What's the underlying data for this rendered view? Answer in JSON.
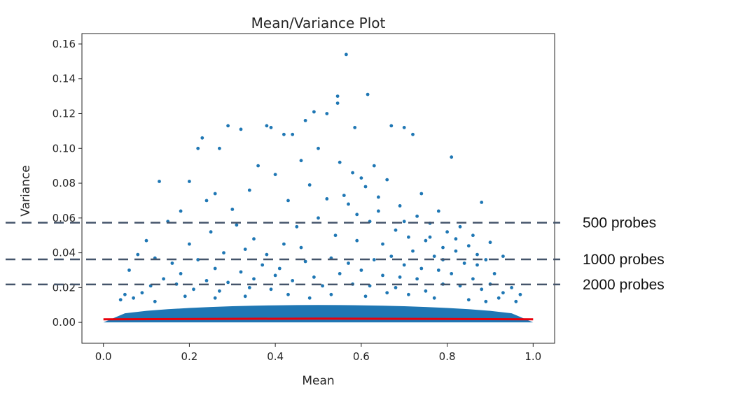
{
  "chart_data": {
    "type": "scatter",
    "title": "Mean/Variance Plot",
    "xlabel": "Mean",
    "ylabel": "Variance",
    "xlim": [
      -0.05,
      1.05
    ],
    "ylim": [
      -0.012,
      0.166
    ],
    "xticks": [
      0.0,
      0.2,
      0.4,
      0.6,
      0.8,
      1.0
    ],
    "xtick_labels": [
      "0.0",
      "0.2",
      "0.4",
      "0.6",
      "0.8",
      "1.0"
    ],
    "yticks": [
      0.0,
      0.02,
      0.04,
      0.06,
      0.08,
      0.1,
      0.12,
      0.14,
      0.16
    ],
    "ytick_labels": [
      "0.00",
      "0.02",
      "0.04",
      "0.06",
      "0.08",
      "0.10",
      "0.12",
      "0.14",
      "0.16"
    ],
    "grid": false,
    "point_color": "#1f77b4",
    "dense_band": {
      "x_range": [
        0.0,
        1.0
      ],
      "y_range": [
        0.0,
        0.01
      ]
    },
    "points": [
      [
        0.13,
        0.081
      ],
      [
        0.2,
        0.081
      ],
      [
        0.22,
        0.1
      ],
      [
        0.23,
        0.106
      ],
      [
        0.27,
        0.1
      ],
      [
        0.29,
        0.113
      ],
      [
        0.32,
        0.111
      ],
      [
        0.38,
        0.113
      ],
      [
        0.39,
        0.112
      ],
      [
        0.42,
        0.108
      ],
      [
        0.44,
        0.108
      ],
      [
        0.47,
        0.116
      ],
      [
        0.49,
        0.121
      ],
      [
        0.52,
        0.12
      ],
      [
        0.545,
        0.13
      ],
      [
        0.545,
        0.126
      ],
      [
        0.565,
        0.154
      ],
      [
        0.585,
        0.112
      ],
      [
        0.615,
        0.131
      ],
      [
        0.67,
        0.113
      ],
      [
        0.7,
        0.112
      ],
      [
        0.72,
        0.108
      ],
      [
        0.81,
        0.095
      ],
      [
        0.88,
        0.069
      ],
      [
        0.1,
        0.047
      ],
      [
        0.15,
        0.058
      ],
      [
        0.18,
        0.064
      ],
      [
        0.24,
        0.07
      ],
      [
        0.26,
        0.074
      ],
      [
        0.34,
        0.076
      ],
      [
        0.36,
        0.09
      ],
      [
        0.4,
        0.085
      ],
      [
        0.46,
        0.093
      ],
      [
        0.5,
        0.1
      ],
      [
        0.55,
        0.092
      ],
      [
        0.58,
        0.086
      ],
      [
        0.6,
        0.083
      ],
      [
        0.63,
        0.09
      ],
      [
        0.66,
        0.082
      ],
      [
        0.74,
        0.074
      ],
      [
        0.78,
        0.064
      ],
      [
        0.83,
        0.055
      ],
      [
        0.86,
        0.05
      ],
      [
        0.9,
        0.046
      ],
      [
        0.93,
        0.038
      ],
      [
        0.95,
        0.02
      ],
      [
        0.06,
        0.03
      ],
      [
        0.08,
        0.039
      ],
      [
        0.05,
        0.016
      ],
      [
        0.97,
        0.016
      ],
      [
        0.3,
        0.065
      ],
      [
        0.31,
        0.056
      ],
      [
        0.43,
        0.07
      ],
      [
        0.48,
        0.079
      ],
      [
        0.52,
        0.071
      ],
      [
        0.57,
        0.068
      ],
      [
        0.61,
        0.078
      ],
      [
        0.64,
        0.064
      ],
      [
        0.69,
        0.067
      ],
      [
        0.73,
        0.061
      ],
      [
        0.76,
        0.057
      ],
      [
        0.8,
        0.052
      ],
      [
        0.85,
        0.044
      ],
      [
        0.89,
        0.036
      ],
      [
        0.2,
        0.045
      ],
      [
        0.25,
        0.052
      ],
      [
        0.35,
        0.048
      ],
      [
        0.45,
        0.055
      ],
      [
        0.5,
        0.06
      ],
      [
        0.62,
        0.058
      ],
      [
        0.68,
        0.053
      ],
      [
        0.71,
        0.049
      ],
      [
        0.75,
        0.047
      ],
      [
        0.79,
        0.043
      ],
      [
        0.82,
        0.041
      ],
      [
        0.87,
        0.033
      ],
      [
        0.91,
        0.028
      ],
      [
        0.12,
        0.037
      ],
      [
        0.16,
        0.034
      ],
      [
        0.22,
        0.036
      ],
      [
        0.28,
        0.04
      ],
      [
        0.33,
        0.042
      ],
      [
        0.38,
        0.039
      ],
      [
        0.42,
        0.045
      ],
      [
        0.46,
        0.043
      ],
      [
        0.54,
        0.05
      ],
      [
        0.59,
        0.047
      ],
      [
        0.65,
        0.045
      ],
      [
        0.72,
        0.041
      ],
      [
        0.77,
        0.038
      ],
      [
        0.84,
        0.034
      ],
      [
        0.14,
        0.025
      ],
      [
        0.18,
        0.028
      ],
      [
        0.26,
        0.031
      ],
      [
        0.32,
        0.029
      ],
      [
        0.37,
        0.033
      ],
      [
        0.41,
        0.031
      ],
      [
        0.47,
        0.035
      ],
      [
        0.53,
        0.037
      ],
      [
        0.57,
        0.034
      ],
      [
        0.63,
        0.036
      ],
      [
        0.67,
        0.038
      ],
      [
        0.7,
        0.033
      ],
      [
        0.74,
        0.031
      ],
      [
        0.78,
        0.03
      ],
      [
        0.81,
        0.028
      ],
      [
        0.86,
        0.025
      ],
      [
        0.9,
        0.022
      ],
      [
        0.11,
        0.021
      ],
      [
        0.17,
        0.022
      ],
      [
        0.24,
        0.024
      ],
      [
        0.29,
        0.023
      ],
      [
        0.35,
        0.025
      ],
      [
        0.4,
        0.027
      ],
      [
        0.44,
        0.024
      ],
      [
        0.49,
        0.026
      ],
      [
        0.55,
        0.028
      ],
      [
        0.6,
        0.03
      ],
      [
        0.65,
        0.027
      ],
      [
        0.69,
        0.026
      ],
      [
        0.73,
        0.025
      ],
      [
        0.79,
        0.022
      ],
      [
        0.83,
        0.021
      ],
      [
        0.88,
        0.019
      ],
      [
        0.93,
        0.017
      ],
      [
        0.09,
        0.017
      ],
      [
        0.21,
        0.019
      ],
      [
        0.27,
        0.018
      ],
      [
        0.34,
        0.02
      ],
      [
        0.39,
        0.019
      ],
      [
        0.51,
        0.021
      ],
      [
        0.58,
        0.022
      ],
      [
        0.62,
        0.021
      ],
      [
        0.68,
        0.02
      ],
      [
        0.75,
        0.018
      ],
      [
        0.92,
        0.014
      ],
      [
        0.96,
        0.012
      ],
      [
        0.04,
        0.013
      ],
      [
        0.07,
        0.014
      ],
      [
        0.12,
        0.012
      ],
      [
        0.19,
        0.015
      ],
      [
        0.26,
        0.014
      ],
      [
        0.33,
        0.015
      ],
      [
        0.43,
        0.016
      ],
      [
        0.48,
        0.014
      ],
      [
        0.53,
        0.016
      ],
      [
        0.61,
        0.015
      ],
      [
        0.66,
        0.017
      ],
      [
        0.71,
        0.016
      ],
      [
        0.77,
        0.014
      ],
      [
        0.85,
        0.013
      ],
      [
        0.89,
        0.012
      ],
      [
        0.56,
        0.073
      ],
      [
        0.64,
        0.072
      ],
      [
        0.59,
        0.062
      ],
      [
        0.7,
        0.058
      ],
      [
        0.76,
        0.049
      ],
      [
        0.82,
        0.048
      ],
      [
        0.79,
        0.036
      ],
      [
        0.87,
        0.039
      ]
    ],
    "mean_curve": {
      "color": "#e8000b",
      "x": [
        0.0,
        0.5,
        1.0
      ],
      "y": [
        0.0018,
        0.0022,
        0.0018
      ]
    },
    "threshold_lines": [
      {
        "y": 0.0573,
        "label": "500 probes"
      },
      {
        "y": 0.0362,
        "label": "1000 probes"
      },
      {
        "y": 0.0218,
        "label": "2000 probes"
      }
    ],
    "threshold_color": "#44546a"
  }
}
